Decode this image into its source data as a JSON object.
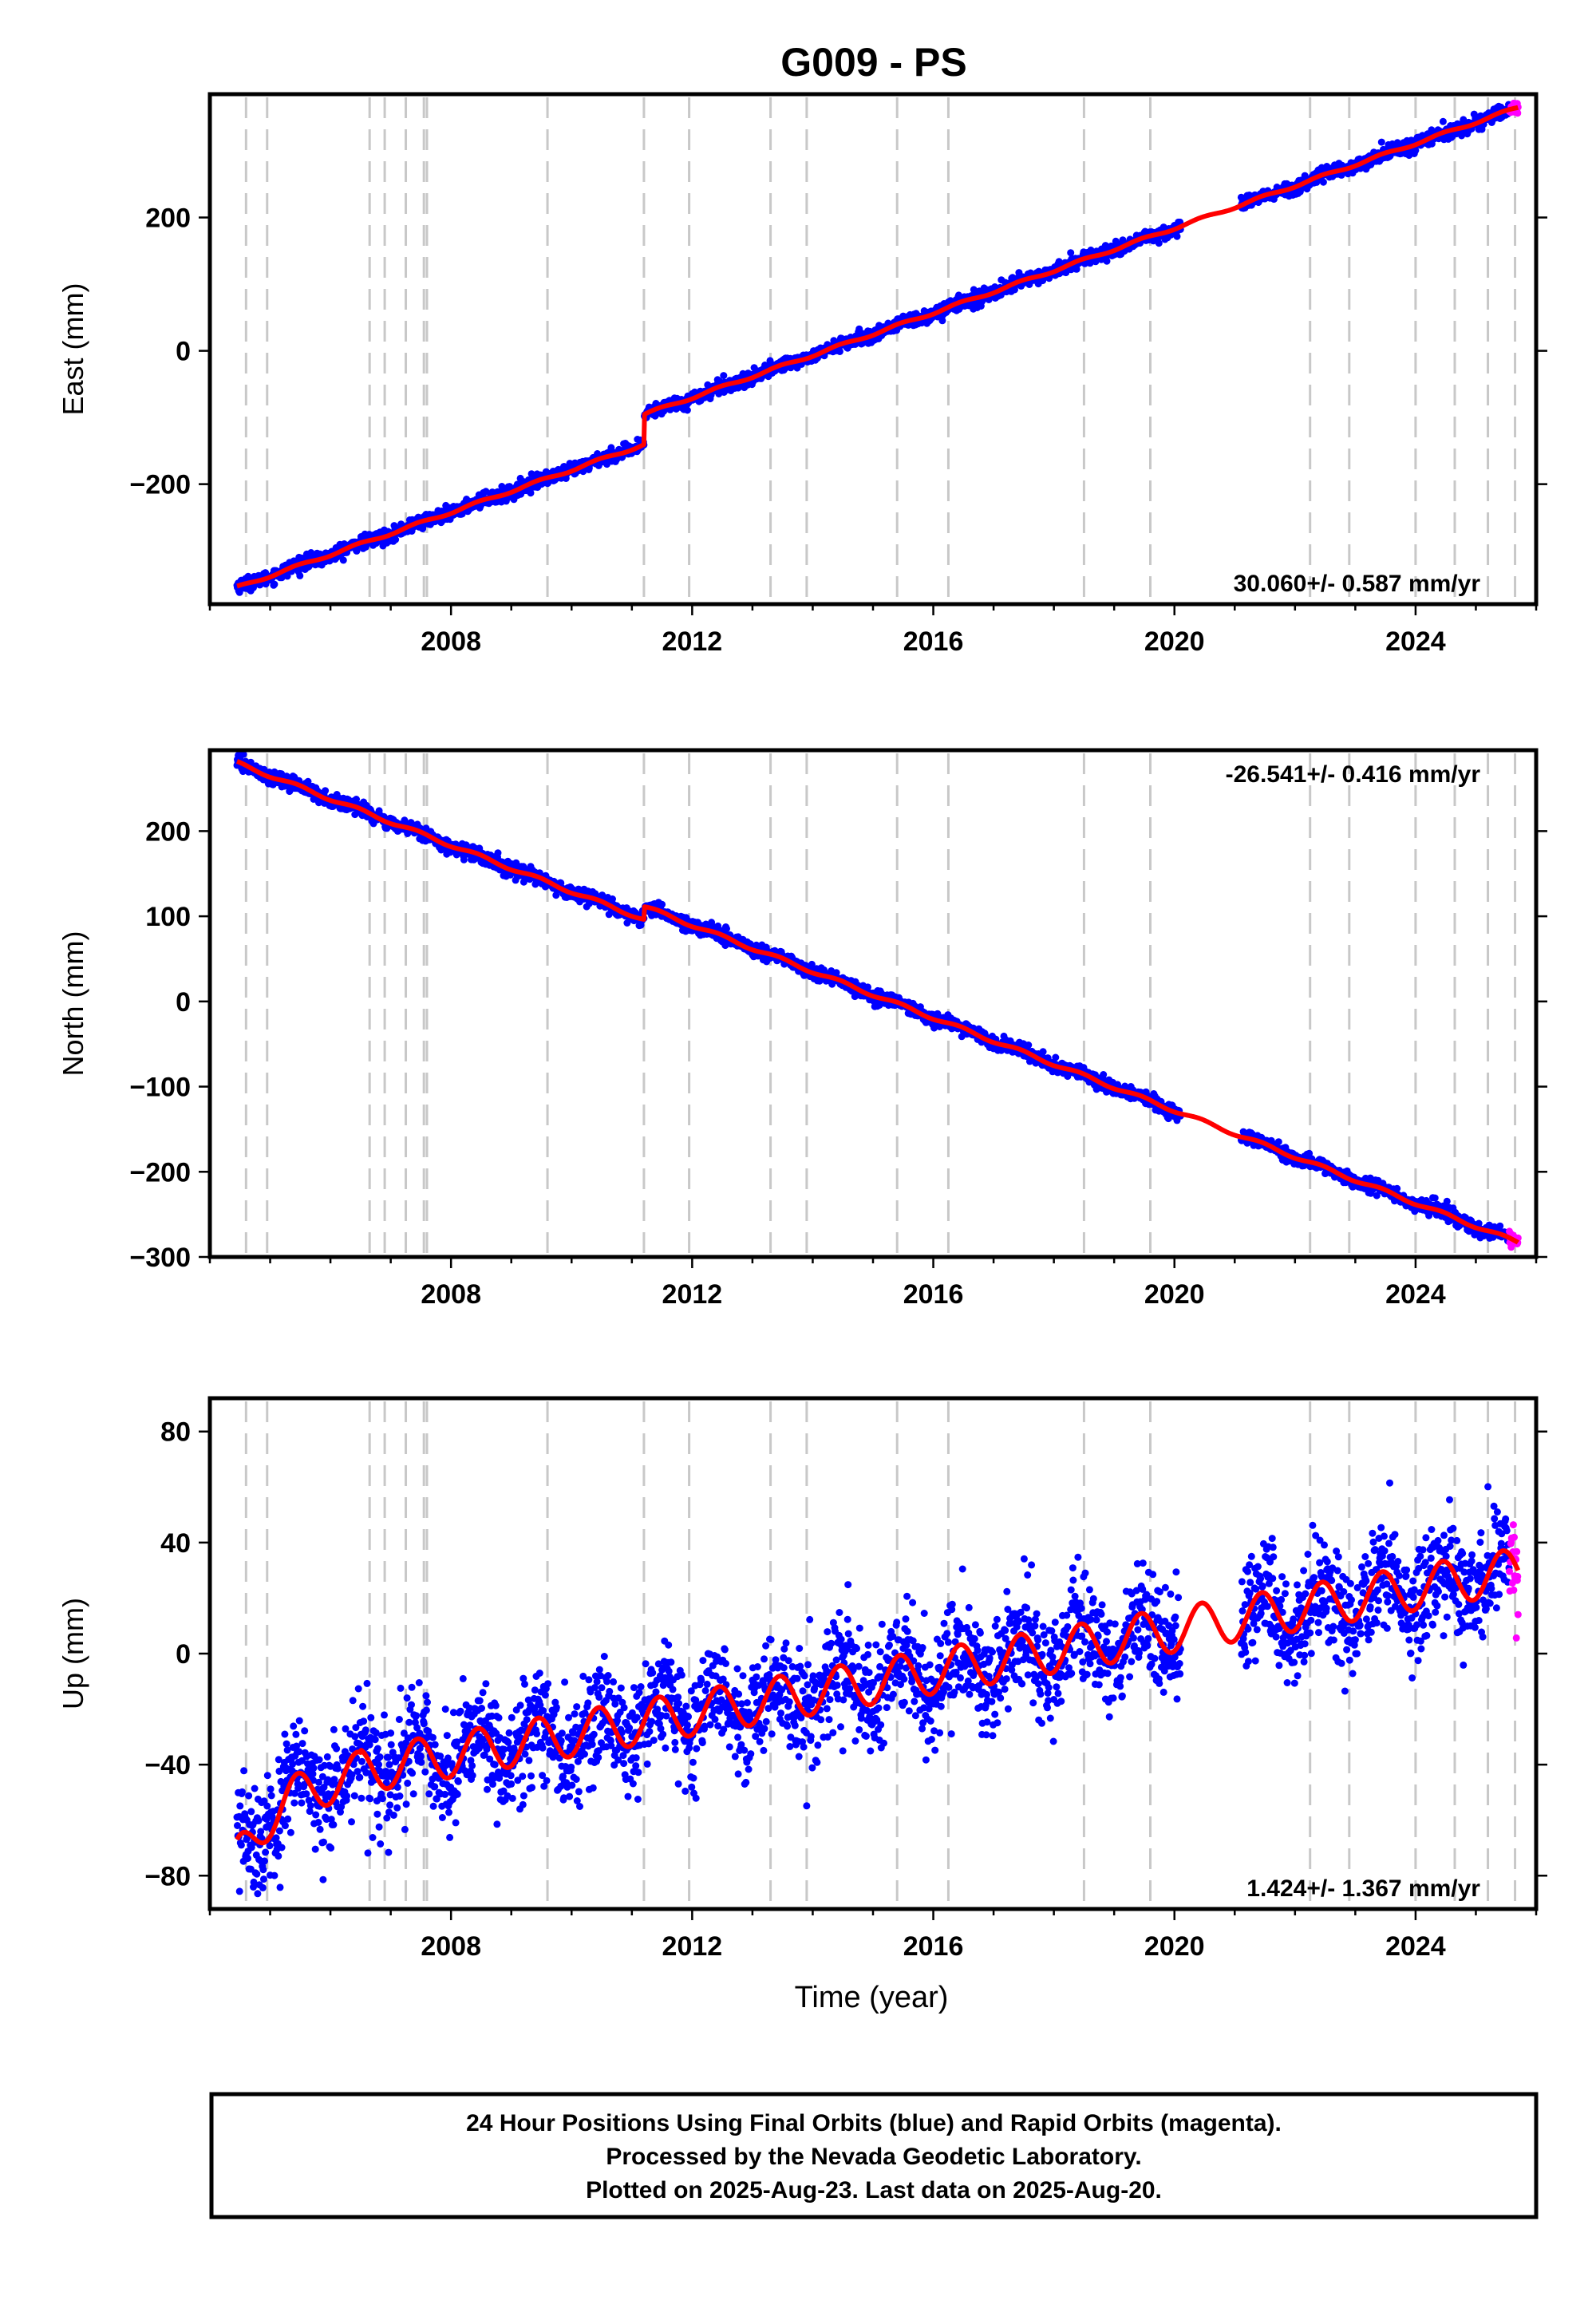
{
  "title": "G009 - PS",
  "x_axis": {
    "label": "Time (year)",
    "range": [
      2004.0,
      2026.0
    ],
    "tick_labels": [
      "2008",
      "2012",
      "2016",
      "2020",
      "2024"
    ]
  },
  "events": [
    2004.6,
    2004.95,
    2006.65,
    2006.9,
    2007.25,
    2007.55,
    2007.6,
    2009.6,
    2011.2,
    2011.95,
    2013.3,
    2013.9,
    2015.4,
    2016.25,
    2018.5,
    2019.6,
    2022.25,
    2022.9,
    2024.0,
    2024.65,
    2025.2,
    2025.65
  ],
  "colors": {
    "final": "#0000ff",
    "rapid": "#ff00ff",
    "fit": "#ff0000",
    "event": "#c8c8c8"
  },
  "panels": [
    {
      "id": "east",
      "ylabel": "East (mm)",
      "ylim": [
        -380,
        385
      ],
      "ticks": [
        -200,
        0,
        200
      ],
      "tick_labels": [
        "−200",
        "0",
        "200"
      ],
      "rate": "30.060+/- 0.587 mm/yr",
      "rate_position": "bottom-right",
      "trend": {
        "start": [
          2004.45,
          -355
        ],
        "step_at": 2011.2,
        "step": 45,
        "end": [
          2025.7,
          365
        ],
        "seasonal_amp": 2,
        "noise": 5
      }
    },
    {
      "id": "north",
      "ylabel": "North (mm)",
      "ylim": [
        -300,
        295
      ],
      "ticks": [
        -300,
        -200,
        -100,
        0,
        100,
        200
      ],
      "tick_labels": [
        "−300",
        "−200",
        "−100",
        "0",
        "100",
        "200"
      ],
      "rate": "-26.541+/- 0.416 mm/yr",
      "rate_position": "top-right",
      "trend": {
        "start": [
          2004.45,
          280
        ],
        "step_at": 2011.2,
        "step": 15,
        "end": [
          2025.7,
          -283
        ],
        "seasonal_amp": 2,
        "noise": 4
      }
    },
    {
      "id": "up",
      "ylabel": "Up (mm)",
      "ylim": [
        -92,
        92
      ],
      "ticks": [
        -80,
        -40,
        0,
        40,
        80
      ],
      "tick_labels": [
        "−80",
        "−40",
        "0",
        "40",
        "80"
      ],
      "rate": "1.424+/- 1.367 mm/yr",
      "rate_position": "bottom-right",
      "trend": {
        "start": [
          2004.45,
          -50
        ],
        "end": [
          2025.7,
          30
        ],
        "seasonal_amp": 8,
        "noise": 10
      }
    }
  ],
  "gaps": [
    [
      2020.1,
      2021.1
    ]
  ],
  "rapid_from": 2025.55,
  "footer_lines": [
    "24 Hour Positions Using Final Orbits (blue) and Rapid Orbits (magenta).",
    "Processed by the Nevada Geodetic Laboratory.",
    "Plotted on 2025-Aug-23. Last data on 2025-Aug-20."
  ]
}
